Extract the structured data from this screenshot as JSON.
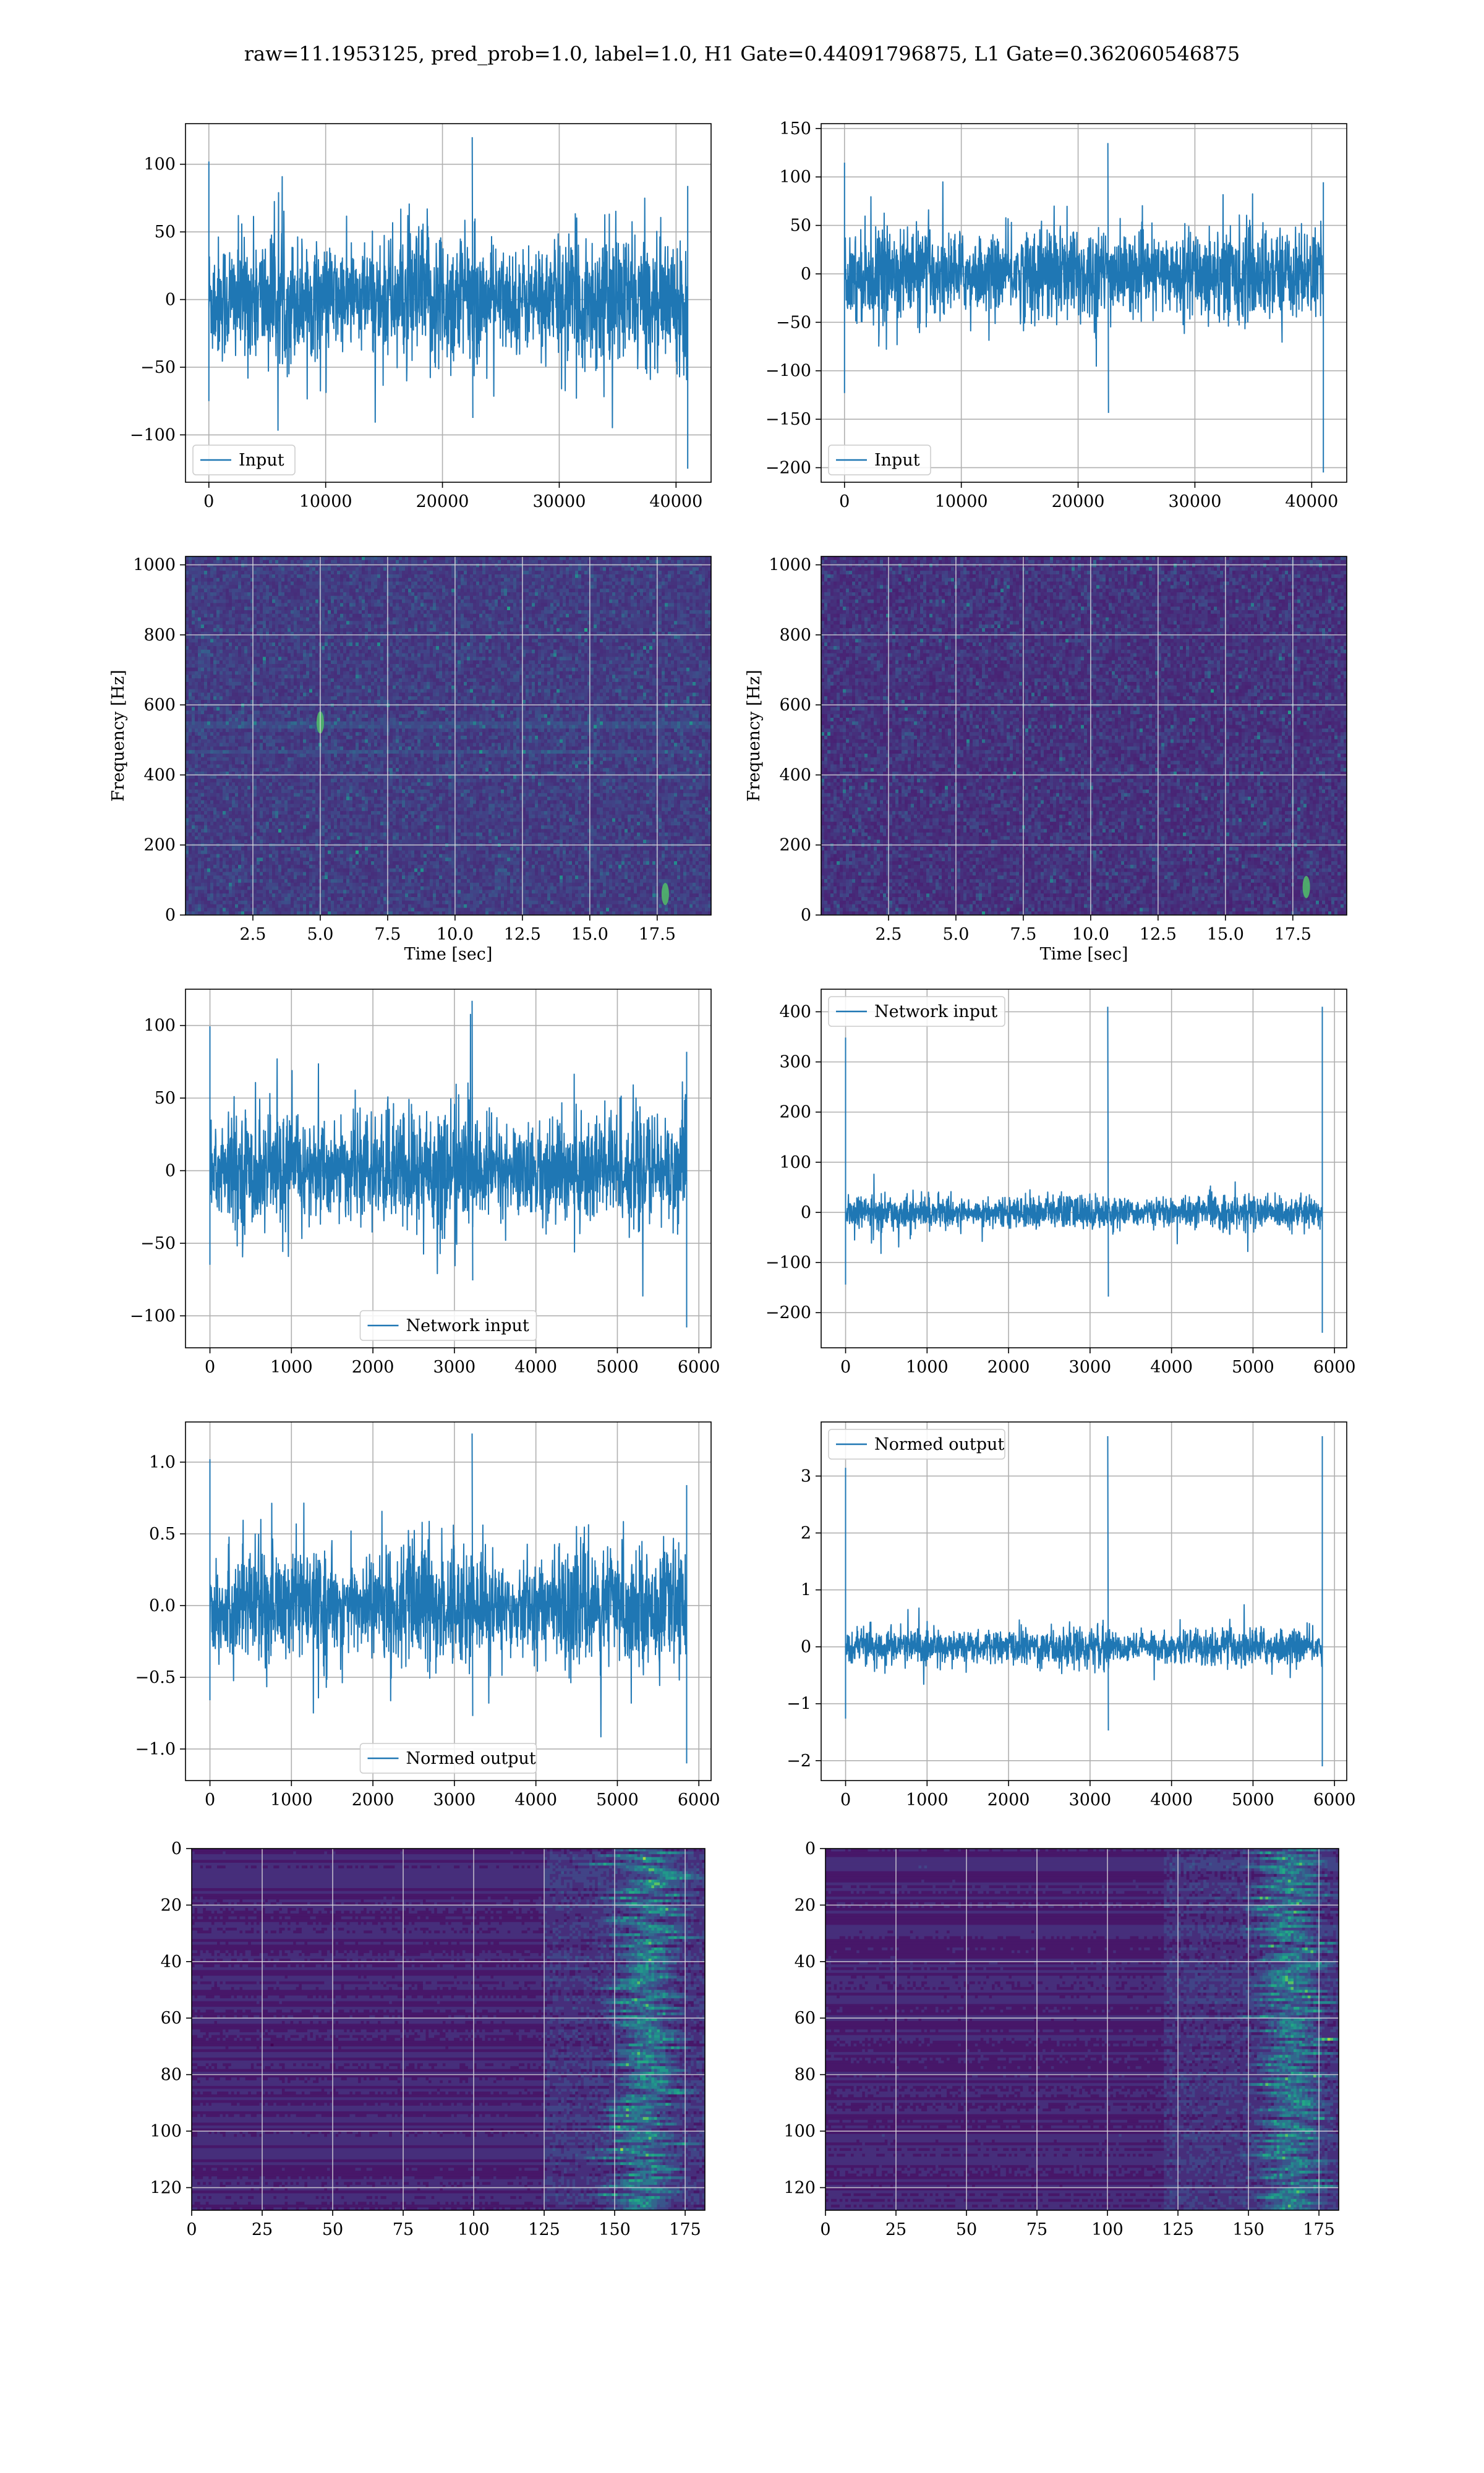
{
  "suptitle": "raw=11.1953125, pred_prob=1.0, label=1.0, H1 Gate=0.44091796875, L1 Gate=0.362060546875",
  "colors": {
    "line": "#1f77b4",
    "grid": "#b0b0b0",
    "spec_bg": "#3b0f6f",
    "viridis_dark": "#440154"
  },
  "chart_data": [
    {
      "id": "h1-input",
      "type": "line",
      "x": [
        0,
        41000
      ],
      "xlim": [
        -2000,
        43000
      ],
      "ylim": [
        -135,
        130
      ],
      "xticks": [
        0,
        10000,
        20000,
        30000,
        40000
      ],
      "yticks": [
        -100,
        -50,
        0,
        50,
        100
      ],
      "amplitude": 60,
      "peak_max": 120,
      "peak_min": -125,
      "legend": {
        "label": "Input",
        "position": "lower left"
      },
      "xlabel": "",
      "ylabel": "",
      "grid": true
    },
    {
      "id": "l1-input",
      "type": "line",
      "x": [
        0,
        41000
      ],
      "xlim": [
        -2000,
        43000
      ],
      "ylim": [
        -215,
        155
      ],
      "xticks": [
        0,
        10000,
        20000,
        30000,
        40000
      ],
      "yticks": [
        -200,
        -150,
        -100,
        -50,
        0,
        50,
        100,
        150
      ],
      "amplitude": 60,
      "peak_max": 135,
      "peak_min": -205,
      "legend": {
        "label": "Input",
        "position": "lower left"
      },
      "xlabel": "",
      "ylabel": "",
      "grid": true
    },
    {
      "id": "h1-spectrogram",
      "type": "heatmap",
      "xlim": [
        0,
        19.5
      ],
      "ylim": [
        0,
        1024
      ],
      "xticks": [
        2.5,
        5.0,
        7.5,
        10.0,
        12.5,
        15.0,
        17.5
      ],
      "yticks": [
        0,
        200,
        400,
        600,
        800,
        1000
      ],
      "xlabel": "Time [sec]",
      "ylabel": "Frequency [Hz]",
      "colormap": "viridis",
      "grid": true,
      "hotspots": [
        {
          "t": 17.8,
          "f": 60
        },
        {
          "t": 5.0,
          "f": 550
        }
      ]
    },
    {
      "id": "l1-spectrogram",
      "type": "heatmap",
      "xlim": [
        0,
        19.5
      ],
      "ylim": [
        0,
        1024
      ],
      "xticks": [
        2.5,
        5.0,
        7.5,
        10.0,
        12.5,
        15.0,
        17.5
      ],
      "yticks": [
        0,
        200,
        400,
        600,
        800,
        1000
      ],
      "xlabel": "Time [sec]",
      "ylabel": "Frequency [Hz]",
      "colormap": "viridis",
      "grid": true,
      "hotspots": [
        {
          "t": 18.0,
          "f": 80
        }
      ]
    },
    {
      "id": "h1-network-input",
      "type": "line",
      "x": [
        0,
        5850
      ],
      "xlim": [
        -300,
        6150
      ],
      "ylim": [
        -122,
        125
      ],
      "xticks": [
        0,
        1000,
        2000,
        3000,
        4000,
        5000,
        6000
      ],
      "yticks": [
        -100,
        -50,
        0,
        50,
        100
      ],
      "amplitude": 50,
      "peak_max": 117,
      "peak_min": -108,
      "legend": {
        "label": "Network input",
        "position": "lower center"
      },
      "xlabel": "",
      "ylabel": "",
      "grid": true
    },
    {
      "id": "l1-network-input",
      "type": "line",
      "x": [
        0,
        5850
      ],
      "xlim": [
        -300,
        6150
      ],
      "ylim": [
        -270,
        445
      ],
      "xticks": [
        0,
        1000,
        2000,
        3000,
        4000,
        5000,
        6000
      ],
      "yticks": [
        -200,
        -100,
        0,
        100,
        200,
        300,
        400
      ],
      "amplitude": 40,
      "peak_max": 410,
      "peak_min": -240,
      "legend": {
        "label": "Network input",
        "position": "upper left"
      },
      "xlabel": "",
      "ylabel": "",
      "grid": true
    },
    {
      "id": "h1-normed-output",
      "type": "line",
      "x": [
        0,
        5850
      ],
      "xlim": [
        -300,
        6150
      ],
      "ylim": [
        -1.22,
        1.28
      ],
      "xticks": [
        0,
        1000,
        2000,
        3000,
        4000,
        5000,
        6000
      ],
      "yticks": [
        -1.0,
        -0.5,
        0.0,
        0.5,
        1.0
      ],
      "amplitude": 0.5,
      "peak_max": 1.2,
      "peak_min": -1.1,
      "legend": {
        "label": "Normed output",
        "position": "lower center"
      },
      "xlabel": "",
      "ylabel": "",
      "grid": true
    },
    {
      "id": "l1-normed-output",
      "type": "line",
      "x": [
        0,
        5850
      ],
      "xlim": [
        -300,
        6150
      ],
      "ylim": [
        -2.35,
        3.95
      ],
      "xticks": [
        0,
        1000,
        2000,
        3000,
        4000,
        5000,
        6000
      ],
      "yticks": [
        -2,
        -1,
        0,
        1,
        2,
        3
      ],
      "amplitude": 0.4,
      "peak_max": 3.7,
      "peak_min": -2.1,
      "legend": {
        "label": "Normed output",
        "position": "upper left"
      },
      "xlabel": "",
      "ylabel": "",
      "grid": true
    },
    {
      "id": "h1-feature-map",
      "type": "heatmap",
      "xlim": [
        0,
        182
      ],
      "ylim": [
        128,
        0
      ],
      "xticks": [
        0,
        25,
        50,
        75,
        100,
        125,
        150,
        175
      ],
      "yticks": [
        0,
        20,
        40,
        60,
        80,
        100,
        120
      ],
      "xlabel": "",
      "ylabel": "",
      "colormap": "viridis",
      "grid": true,
      "active_range": [
        125,
        182
      ],
      "peak_column": 160
    },
    {
      "id": "l1-feature-map",
      "type": "heatmap",
      "xlim": [
        0,
        182
      ],
      "ylim": [
        128,
        0
      ],
      "xticks": [
        0,
        25,
        50,
        75,
        100,
        125,
        150,
        175
      ],
      "yticks": [
        0,
        20,
        40,
        60,
        80,
        100,
        120
      ],
      "xlabel": "",
      "ylabel": "",
      "colormap": "viridis",
      "grid": true,
      "active_range": [
        120,
        182
      ],
      "peak_column": 165
    }
  ]
}
